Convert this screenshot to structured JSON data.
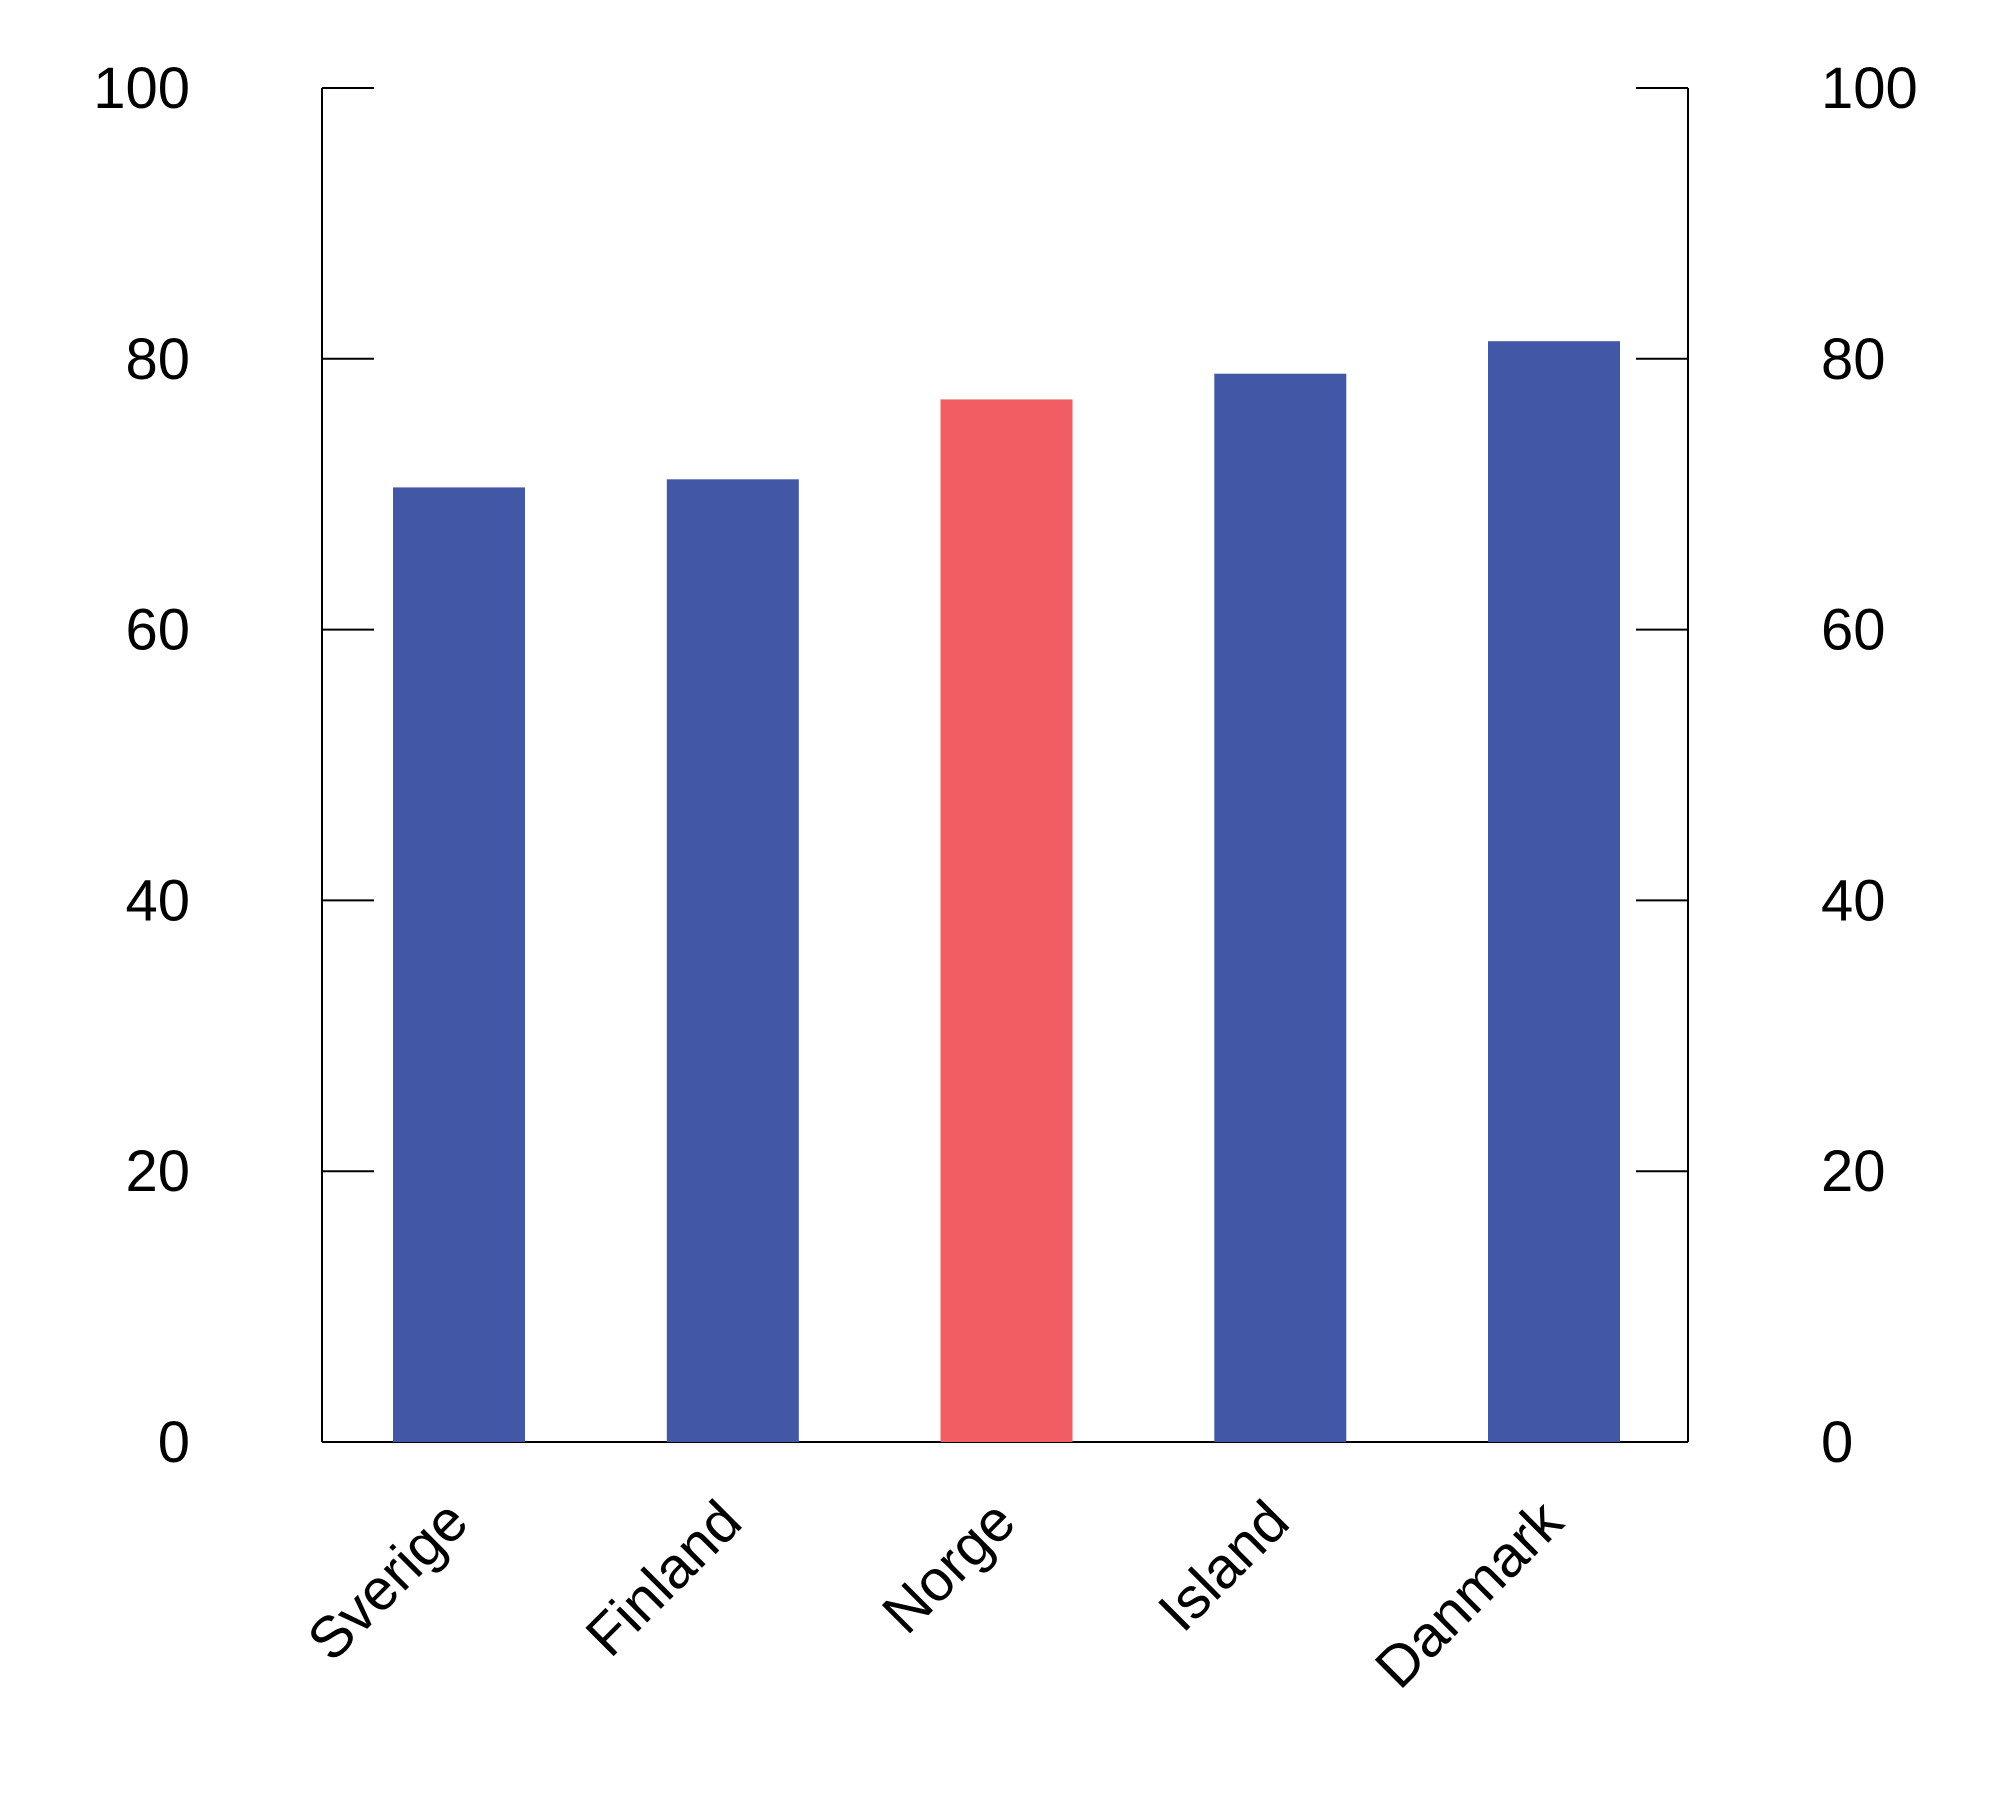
{
  "chart_data": {
    "type": "bar",
    "categories": [
      "Sverige",
      "Finland",
      "Norge",
      "Island",
      "Danmark"
    ],
    "values": [
      70.5,
      71.1,
      77.0,
      78.9,
      81.3
    ],
    "bar_colors": [
      "#4257a5",
      "#4257a5",
      "#f15d63",
      "#4257a5",
      "#4257a5"
    ],
    "ylim": [
      0,
      100
    ],
    "yticks": [
      0,
      20,
      40,
      60,
      80,
      100
    ],
    "y_tick_labels": [
      "0",
      "20",
      "40",
      "60",
      "80",
      "100"
    ],
    "right_axis_mirrored": true,
    "grid": false,
    "title": "",
    "xlabel": "",
    "ylabel": ""
  }
}
